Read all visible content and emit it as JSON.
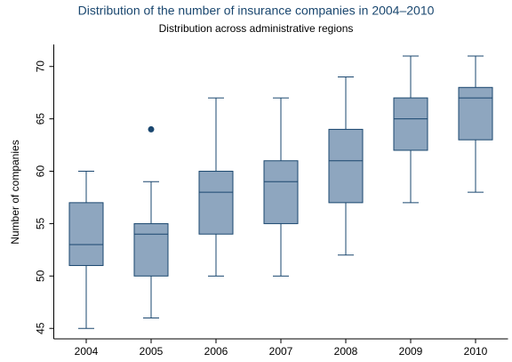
{
  "chart_data": {
    "type": "box",
    "title": "Distribution of the number of insurance companies in 2004–2010",
    "subtitle": "Distribution across administrative regions",
    "y_label": "Number of companies",
    "categories": [
      "2004",
      "2005",
      "2006",
      "2007",
      "2008",
      "2009",
      "2010"
    ],
    "boxes": [
      {
        "min": 45,
        "q1": 51,
        "median": 53,
        "q3": 57,
        "max": 60
      },
      {
        "min": 46,
        "q1": 50,
        "median": 54,
        "q3": 55,
        "max": 59,
        "outliers": [
          64
        ]
      },
      {
        "min": 50,
        "q1": 54,
        "median": 58,
        "q3": 60,
        "max": 67
      },
      {
        "min": 50,
        "q1": 55,
        "median": 59,
        "q3": 61,
        "max": 67
      },
      {
        "min": 52,
        "q1": 57,
        "median": 61,
        "q3": 64,
        "max": 69
      },
      {
        "min": 57,
        "q1": 62,
        "median": 65,
        "q3": 67,
        "max": 71
      },
      {
        "min": 58,
        "q1": 63,
        "median": 67,
        "q3": 68,
        "max": 71
      }
    ],
    "color": "#8ea6bf",
    "line_color": "#1a476f",
    "ylim": [
      44,
      72.1
    ],
    "yticks": [
      45,
      50,
      55,
      60,
      65,
      70
    ]
  }
}
